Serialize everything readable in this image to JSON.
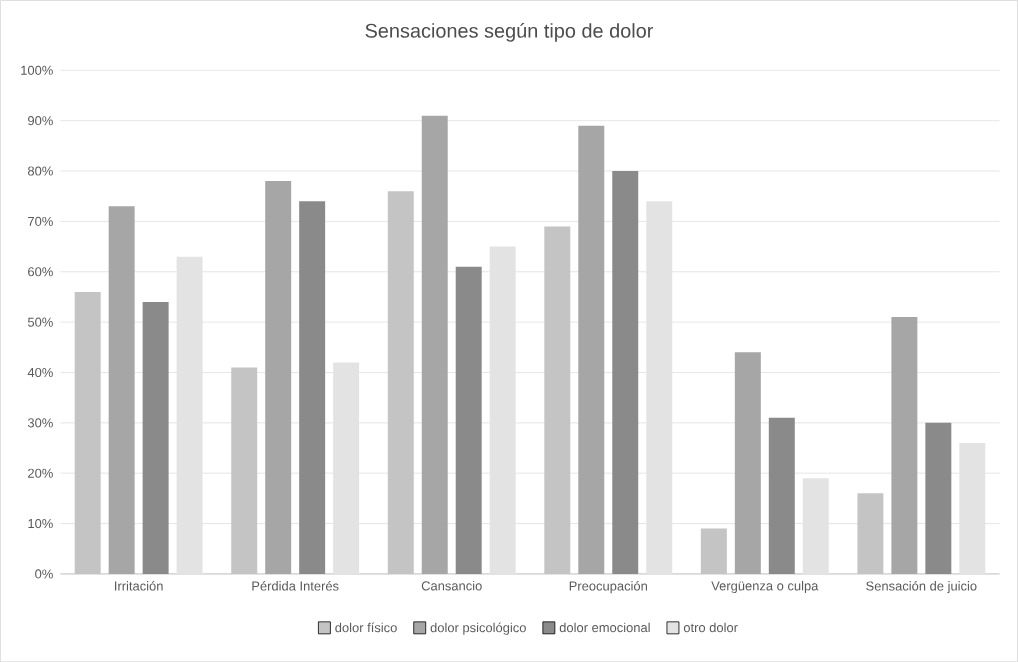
{
  "chart_data": {
    "type": "bar",
    "title": "Sensaciones según tipo de dolor",
    "categories": [
      "Irritación",
      "Pérdida Interés",
      "Cansancio",
      "Preocupación",
      "Vergüenza o culpa",
      "Sensación de juicio"
    ],
    "series": [
      {
        "name": "dolor físico",
        "color": "#c4c4c4",
        "values": [
          56,
          41,
          76,
          69,
          9,
          16
        ]
      },
      {
        "name": "dolor psicológico",
        "color": "#a6a6a6",
        "values": [
          73,
          78,
          91,
          89,
          44,
          51
        ]
      },
      {
        "name": "dolor emocional",
        "color": "#8a8a8a",
        "values": [
          54,
          74,
          61,
          80,
          31,
          30
        ]
      },
      {
        "name": "otro dolor",
        "color": "#e3e3e3",
        "values": [
          63,
          42,
          65,
          74,
          19,
          26
        ]
      }
    ],
    "ylim": [
      0,
      100
    ],
    "yticks": [
      {
        "value": 0,
        "label": "0%"
      },
      {
        "value": 10,
        "label": "10%"
      },
      {
        "value": 20,
        "label": "20%"
      },
      {
        "value": 30,
        "label": "30%"
      },
      {
        "value": 40,
        "label": "40%"
      },
      {
        "value": 50,
        "label": "50%"
      },
      {
        "value": 60,
        "label": "60%"
      },
      {
        "value": 70,
        "label": "70%"
      },
      {
        "value": 80,
        "label": "80%"
      },
      {
        "value": 90,
        "label": "90%"
      },
      {
        "value": 100,
        "label": "100%"
      }
    ],
    "grid": "y",
    "legend": "bottom"
  }
}
